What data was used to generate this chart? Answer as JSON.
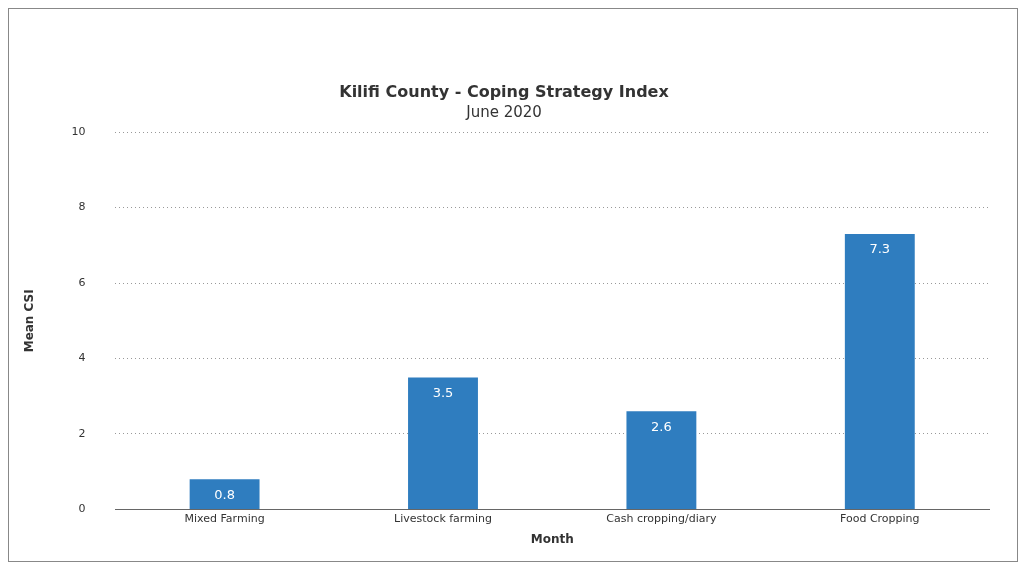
{
  "chart_data": {
    "type": "bar",
    "title": "Kilifi County - Coping Strategy Index",
    "subtitle": "June 2020",
    "xlabel": "Month",
    "ylabel": "Mean CSI",
    "categories": [
      "Mixed Farming",
      "Livestock farming",
      "Cash cropping/diary",
      "Food Cropping"
    ],
    "values": [
      0.8,
      3.5,
      2.6,
      7.3
    ],
    "color": "#2f7dbf",
    "ylim": [
      0,
      10
    ],
    "yticks": [
      0,
      2,
      4,
      6,
      8,
      10
    ],
    "grid": "y",
    "data_labels": true
  }
}
